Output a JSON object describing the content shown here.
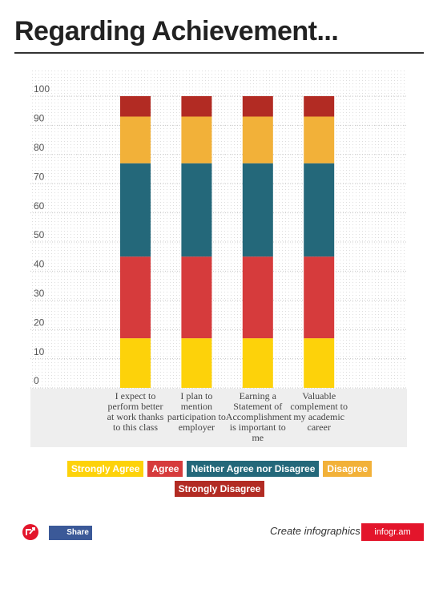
{
  "chart_data": {
    "type": "stacked_bar",
    "title": "Regarding Achievement...",
    "categories": [
      "I expect to perform better at work thanks to this class",
      "I plan to mention participation to employer",
      "Earning a Statement of Accomplishment is important to me",
      "Valuable complement to my academic career"
    ],
    "series": [
      {
        "name": "Strongly Agree",
        "color": "#fdd20a",
        "values": [
          17,
          17,
          17,
          17
        ]
      },
      {
        "name": "Agree",
        "color": "#d63b3c",
        "values": [
          28,
          28,
          28,
          28
        ]
      },
      {
        "name": "Neither Agree nor Disagree",
        "color": "#24687a",
        "values": [
          32,
          32,
          32,
          32
        ]
      },
      {
        "name": "Disagree",
        "color": "#f2b139",
        "values": [
          16,
          16,
          16,
          16
        ]
      },
      {
        "name": "Strongly Disagree",
        "color": "#b22b23",
        "values": [
          7,
          7,
          7,
          7
        ]
      }
    ],
    "ylim": [
      0,
      100
    ],
    "yticks": [
      0,
      10,
      20,
      30,
      40,
      50,
      60,
      70,
      80,
      90,
      100
    ],
    "grid": true
  },
  "footer": {
    "share": "Share",
    "promo": "Create infographics",
    "brand": "infogr.am"
  }
}
